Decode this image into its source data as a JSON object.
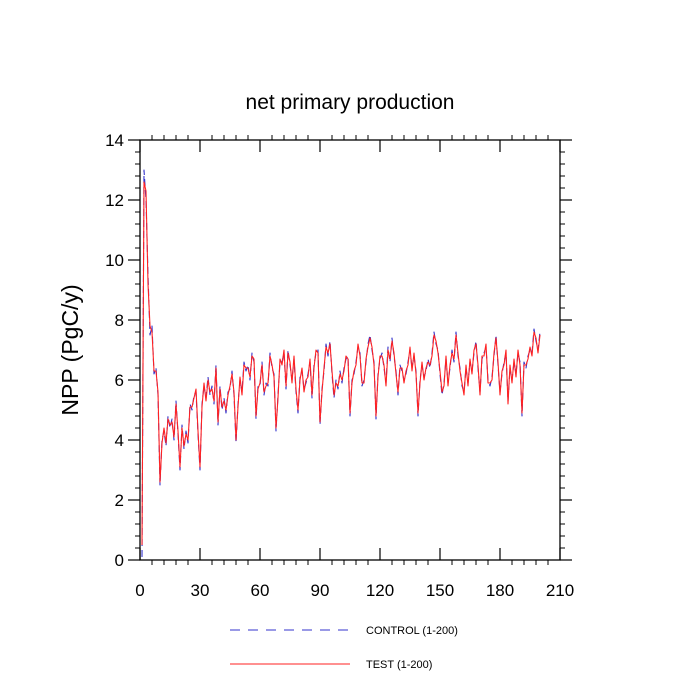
{
  "chart_data": {
    "type": "line",
    "title": "net primary production",
    "xlabel": "",
    "ylabel": "NPP  (PgC/y)",
    "xlim": [
      0,
      210
    ],
    "ylim": [
      0,
      14
    ],
    "xticks": [
      0,
      30,
      60,
      90,
      120,
      150,
      180,
      210
    ],
    "yticks": [
      0,
      2,
      4,
      6,
      8,
      10,
      12,
      14
    ],
    "grid": false,
    "legend_position": "bottom-center",
    "series": [
      {
        "name": "CONTROL (1-200)",
        "color": "#3333cc",
        "style": "dashed",
        "x": [
          1,
          2,
          3,
          4,
          5,
          6,
          7,
          8,
          9,
          10,
          11,
          12,
          13,
          14,
          15,
          16,
          17,
          18,
          19,
          20,
          21,
          22,
          23,
          24,
          25,
          26,
          27,
          28,
          29,
          30,
          31,
          32,
          33,
          34,
          35,
          36,
          37,
          38,
          39,
          40,
          41,
          42,
          43,
          44,
          45,
          46,
          47,
          48,
          49,
          50,
          51,
          52,
          53,
          54,
          55,
          56,
          57,
          58,
          59,
          60,
          61,
          62,
          63,
          64,
          65,
          66,
          67,
          68,
          69,
          70,
          71,
          72,
          73,
          74,
          75,
          76,
          77,
          78,
          79,
          80,
          81,
          82,
          83,
          84,
          85,
          86,
          87,
          88,
          89,
          90,
          91,
          92,
          93,
          94,
          95,
          96,
          97,
          98,
          99,
          100,
          101,
          102,
          103,
          104,
          105,
          106,
          107,
          108,
          109,
          110,
          111,
          112,
          113,
          114,
          115,
          116,
          117,
          118,
          119,
          120,
          121,
          122,
          123,
          124,
          125,
          126,
          127,
          128,
          129,
          130,
          131,
          132,
          133,
          134,
          135,
          136,
          137,
          138,
          139,
          140,
          141,
          142,
          143,
          144,
          145,
          146,
          147,
          148,
          149,
          150,
          151,
          152,
          153,
          154,
          155,
          156,
          157,
          158,
          159,
          160,
          161,
          162,
          163,
          164,
          165,
          166,
          167,
          168,
          169,
          170,
          171,
          172,
          173,
          174,
          175,
          176,
          177,
          178,
          179,
          180,
          181,
          182,
          183,
          184,
          185,
          186,
          187,
          188,
          189,
          190,
          191,
          192,
          193,
          194,
          195,
          196,
          197,
          198,
          199,
          200
        ],
        "values": [
          0.1,
          13.0,
          12.0,
          9.5,
          7.5,
          7.8,
          6.2,
          6.4,
          5.5,
          2.5,
          4.0,
          4.3,
          3.8,
          4.8,
          4.4,
          4.7,
          4.0,
          5.3,
          4.2,
          3.0,
          4.5,
          3.7,
          4.3,
          3.9,
          5.2,
          5.0,
          5.5,
          5.6,
          4.2,
          3.0,
          5.2,
          5.8,
          5.4,
          6.1,
          5.5,
          5.8,
          5.2,
          6.5,
          4.5,
          5.8,
          5.0,
          5.4,
          4.9,
          5.6,
          5.7,
          6.3,
          5.5,
          3.9,
          5.2,
          6.0,
          5.6,
          6.6,
          6.3,
          6.5,
          6.0,
          6.9,
          6.6,
          4.7,
          5.8,
          5.8,
          6.6,
          5.5,
          5.9,
          5.8,
          6.9,
          6.4,
          6.2,
          4.3,
          5.5,
          6.6,
          6.6,
          6.9,
          5.7,
          7.0,
          6.5,
          6.0,
          6.7,
          5.6,
          4.9,
          6.1,
          6.3,
          5.7,
          5.9,
          6.2,
          6.6,
          5.4,
          6.5,
          6.9,
          7.0,
          4.5,
          5.7,
          6.3,
          7.2,
          6.8,
          7.3,
          6.2,
          5.4,
          6.0,
          5.7,
          6.3,
          5.9,
          6.4,
          6.7,
          6.8,
          4.8,
          6.0,
          6.2,
          6.6,
          7.1,
          6.9,
          5.8,
          6.0,
          6.6,
          7.2,
          7.5,
          7.0,
          6.6,
          4.7,
          6.2,
          6.7,
          6.9,
          6.4,
          5.9,
          7.1,
          6.6,
          7.4,
          6.8,
          6.3,
          5.5,
          6.5,
          6.3,
          6.0,
          6.2,
          6.6,
          7.0,
          6.4,
          6.8,
          6.3,
          4.8,
          6.0,
          6.5,
          6.1,
          6.3,
          6.7,
          6.4,
          6.9,
          7.6,
          7.2,
          7.0,
          6.2,
          5.5,
          5.9,
          6.7,
          5.9,
          6.4,
          7.0,
          6.6,
          7.6,
          6.8,
          6.4,
          5.8,
          5.6,
          6.4,
          5.9,
          6.6,
          6.3,
          6.9,
          7.3,
          6.4,
          5.6,
          6.7,
          6.9,
          7.1,
          6.0,
          5.8,
          6.1,
          6.8,
          7.5,
          6.5,
          5.6,
          6.2,
          6.6,
          6.9,
          5.3,
          6.4,
          6.0,
          6.6,
          6.2,
          6.9,
          6.6,
          4.8,
          6.6,
          6.4,
          6.8,
          7.0,
          6.9,
          7.7,
          7.3,
          7.0,
          7.6
        ]
      },
      {
        "name": "TEST (1-200)",
        "color": "#ff2222",
        "style": "solid",
        "x": [
          1,
          2,
          3,
          4,
          5,
          6,
          7,
          8,
          9,
          10,
          11,
          12,
          13,
          14,
          15,
          16,
          17,
          18,
          19,
          20,
          21,
          22,
          23,
          24,
          25,
          26,
          27,
          28,
          29,
          30,
          31,
          32,
          33,
          34,
          35,
          36,
          37,
          38,
          39,
          40,
          41,
          42,
          43,
          44,
          45,
          46,
          47,
          48,
          49,
          50,
          51,
          52,
          53,
          54,
          55,
          56,
          57,
          58,
          59,
          60,
          61,
          62,
          63,
          64,
          65,
          66,
          67,
          68,
          69,
          70,
          71,
          72,
          73,
          74,
          75,
          76,
          77,
          78,
          79,
          80,
          81,
          82,
          83,
          84,
          85,
          86,
          87,
          88,
          89,
          90,
          91,
          92,
          93,
          94,
          95,
          96,
          97,
          98,
          99,
          100,
          101,
          102,
          103,
          104,
          105,
          106,
          107,
          108,
          109,
          110,
          111,
          112,
          113,
          114,
          115,
          116,
          117,
          118,
          119,
          120,
          121,
          122,
          123,
          124,
          125,
          126,
          127,
          128,
          129,
          130,
          131,
          132,
          133,
          134,
          135,
          136,
          137,
          138,
          139,
          140,
          141,
          142,
          143,
          144,
          145,
          146,
          147,
          148,
          149,
          150,
          151,
          152,
          153,
          154,
          155,
          156,
          157,
          158,
          159,
          160,
          161,
          162,
          163,
          164,
          165,
          166,
          167,
          168,
          169,
          170,
          171,
          172,
          173,
          174,
          175,
          176,
          177,
          178,
          179,
          180,
          181,
          182,
          183,
          184,
          185,
          186,
          187,
          188,
          189,
          190,
          191,
          192,
          193,
          194,
          195,
          196,
          197,
          198,
          199,
          200
        ],
        "values": [
          0.5,
          12.6,
          12.3,
          9.2,
          7.8,
          7.6,
          6.3,
          6.3,
          5.6,
          2.6,
          3.9,
          4.4,
          3.9,
          4.7,
          4.5,
          4.6,
          4.1,
          5.2,
          4.3,
          3.1,
          4.4,
          3.8,
          4.2,
          4.0,
          5.1,
          5.1,
          5.4,
          5.7,
          4.3,
          3.1,
          5.1,
          5.9,
          5.3,
          6.0,
          5.6,
          5.7,
          5.3,
          6.4,
          4.6,
          5.7,
          5.1,
          5.3,
          5.0,
          5.5,
          5.8,
          6.2,
          5.6,
          4.0,
          5.1,
          6.1,
          5.5,
          6.5,
          6.4,
          6.4,
          6.1,
          6.8,
          6.7,
          4.8,
          5.7,
          5.9,
          6.5,
          5.6,
          5.8,
          5.9,
          6.8,
          6.5,
          6.1,
          4.4,
          5.4,
          6.7,
          6.5,
          7.0,
          5.8,
          6.9,
          6.6,
          5.9,
          6.8,
          5.7,
          5.0,
          6.0,
          6.4,
          5.6,
          6.0,
          6.1,
          6.7,
          5.5,
          6.4,
          7.0,
          6.9,
          4.6,
          5.6,
          6.4,
          7.1,
          6.9,
          7.2,
          6.3,
          5.5,
          5.9,
          5.8,
          6.2,
          6.0,
          6.3,
          6.8,
          6.7,
          4.9,
          5.9,
          6.3,
          6.5,
          7.2,
          6.8,
          5.9,
          5.9,
          6.7,
          7.1,
          7.4,
          7.1,
          6.5,
          4.8,
          6.1,
          6.8,
          6.8,
          6.5,
          5.8,
          7.0,
          6.7,
          7.3,
          6.9,
          6.2,
          5.6,
          6.4,
          6.4,
          5.9,
          6.3,
          6.5,
          7.1,
          6.3,
          6.9,
          6.2,
          4.9,
          5.9,
          6.6,
          6.0,
          6.4,
          6.6,
          6.5,
          6.8,
          7.5,
          7.3,
          6.9,
          6.3,
          5.6,
          5.8,
          6.8,
          5.8,
          6.5,
          6.9,
          6.7,
          7.5,
          6.9,
          6.3,
          5.9,
          5.5,
          6.5,
          5.8,
          6.7,
          6.2,
          7.0,
          7.2,
          6.5,
          5.5,
          6.8,
          6.8,
          7.2,
          5.9,
          5.9,
          6.0,
          6.9,
          7.4,
          6.6,
          5.5,
          6.3,
          6.5,
          7.0,
          5.2,
          6.5,
          5.9,
          6.7,
          6.1,
          7.0,
          6.5,
          4.9,
          6.5,
          6.5,
          6.7,
          7.1,
          6.8,
          7.6,
          7.4,
          6.9,
          7.5
        ]
      }
    ]
  }
}
